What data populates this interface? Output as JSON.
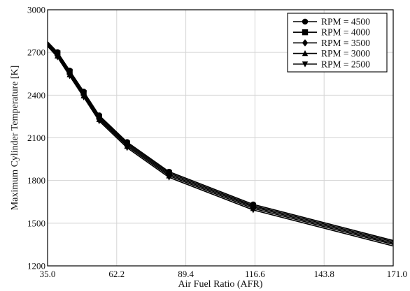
{
  "chart_data": {
    "type": "line",
    "xlabel": "Air Fuel Ratio (AFR)",
    "ylabel": "Maximum Cylinder Temperature [K]",
    "xlim": [
      35.0,
      171.0
    ],
    "ylim": [
      1200,
      3000
    ],
    "xticks": [
      "35.0",
      "62.2",
      "89.4",
      "116.6",
      "143.8",
      "171.0"
    ],
    "xtick_values": [
      35.0,
      62.2,
      89.4,
      116.6,
      143.8,
      171.0
    ],
    "yticks": [
      "1200",
      "1500",
      "1800",
      "2100",
      "2400",
      "2700",
      "3000"
    ],
    "ytick_values": [
      1200,
      1500,
      1800,
      2100,
      2400,
      2700,
      3000
    ],
    "grid": true,
    "legend_position": "top-right",
    "x": [
      35.0,
      38.9,
      43.7,
      49.2,
      55.3,
      66.3,
      82.8,
      115.9,
      171.0
    ],
    "series": [
      {
        "name": "RPM = 4500",
        "marker": "circle",
        "marked_points": [
          1,
          2,
          3,
          4,
          5,
          6,
          7
        ],
        "values": [
          2775,
          2702,
          2573,
          2425,
          2258,
          2070,
          1862,
          1632,
          1378
        ]
      },
      {
        "name": "RPM = 4000",
        "marker": "square",
        "marked_points": [
          1,
          2,
          3,
          4,
          5,
          6,
          7
        ],
        "values": [
          2768,
          2694,
          2564,
          2416,
          2249,
          2061,
          1853,
          1623,
          1369
        ]
      },
      {
        "name": "RPM = 3500",
        "marker": "diamond",
        "marked_points": [
          1,
          2,
          3,
          4,
          5,
          6,
          7
        ],
        "values": [
          2760,
          2685,
          2555,
          2406,
          2239,
          2051,
          1843,
          1614,
          1360
        ]
      },
      {
        "name": "RPM = 3000",
        "marker": "triangle-up",
        "marked_points": [
          1,
          2,
          3,
          4,
          5,
          6,
          7
        ],
        "values": [
          2752,
          2676,
          2545,
          2396,
          2229,
          2041,
          1833,
          1604,
          1351
        ]
      },
      {
        "name": "RPM = 2500",
        "marker": "triangle-down",
        "marked_points": [
          1,
          2,
          3,
          4,
          5,
          6,
          7
        ],
        "values": [
          2744,
          2667,
          2535,
          2386,
          2218,
          2030,
          1822,
          1593,
          1340
        ]
      }
    ]
  }
}
